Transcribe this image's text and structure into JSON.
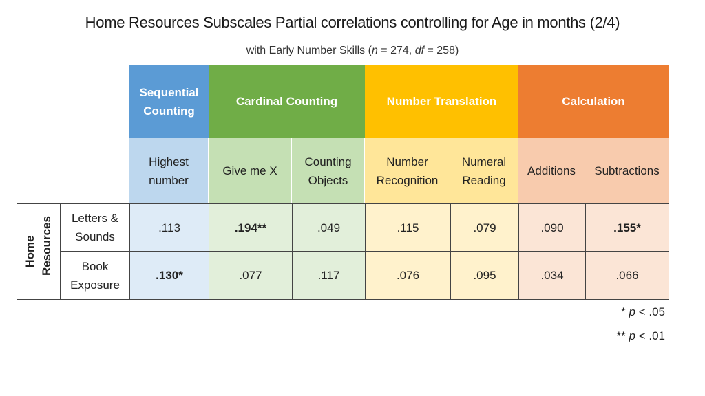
{
  "title": "Home Resources Subscales Partial correlations controlling for Age in months (2/4)",
  "subtitle": {
    "prefix": "with Early Number Skills (",
    "n_label": "n",
    "n_text": " = 274, ",
    "df_label": "df",
    "df_text": " = 258)"
  },
  "colors": {
    "sequential": "#5b9bd5",
    "cardinal": "#70ad47",
    "translation": "#ffc000",
    "calculation": "#ed7d31",
    "sequential_light": "#bdd7ee",
    "cardinal_light": "#c5e0b4",
    "translation_light": "#ffe699",
    "calculation_light": "#f8cbad"
  },
  "groups": [
    "Sequential Counting",
    "Cardinal Counting",
    "Number Translation",
    "Calculation"
  ],
  "columns": [
    "Highest number",
    "Give me X",
    "Counting Objects",
    "Number Recognition",
    "Numeral Reading",
    "Additions",
    "Subtractions"
  ],
  "row_group_label": "Home Resources",
  "rows": [
    {
      "label": "Letters & Sounds",
      "values": [
        ".113",
        ".194**",
        ".049",
        ".115",
        ".079",
        ".090",
        ".155*"
      ]
    },
    {
      "label": "Book Exposure",
      "values": [
        ".130*",
        ".077",
        ".117",
        ".076",
        ".095",
        ".034",
        ".066"
      ]
    }
  ],
  "notes": [
    {
      "prefix": "* ",
      "p": "p",
      "suffix": " < .05"
    },
    {
      "prefix": "** ",
      "p": "p",
      "suffix": " < .01"
    }
  ]
}
